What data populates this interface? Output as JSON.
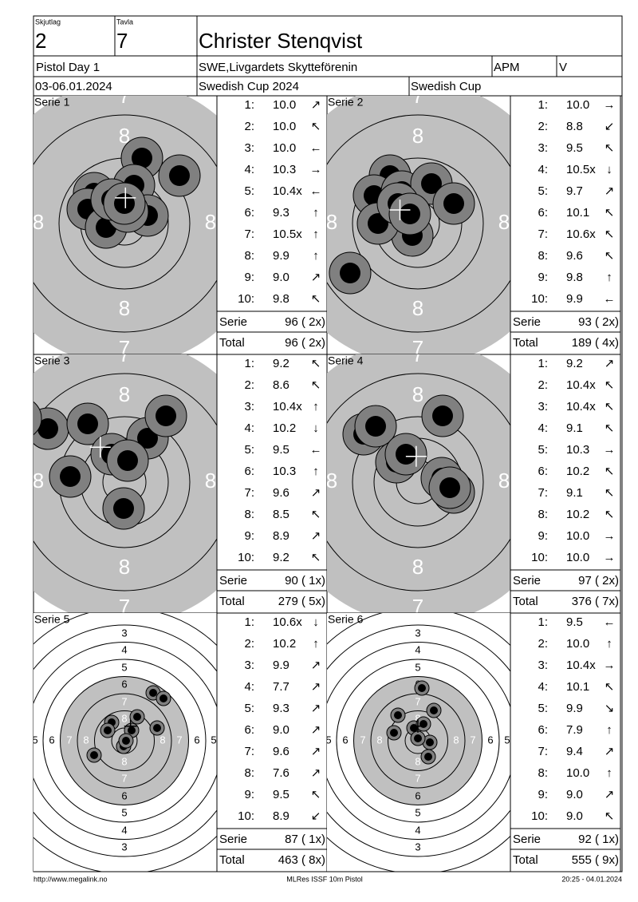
{
  "header": {
    "skjutlag_label": "Skjutlag",
    "skjutlag": "2",
    "tavla_label": "Tavla",
    "tavla": "7",
    "name": "Christer Stenqvist",
    "event": "Pistol Day 1",
    "club": "SWE,Livgardets Skytteförenin",
    "class": "APM",
    "flag": "V",
    "date": "03-06.01.2024",
    "competition": "Swedish Cup 2024",
    "cup": "Swedish Cup"
  },
  "target_labels": {
    "zoomed": {
      "inner": "8",
      "outer": "7"
    },
    "full": [
      "3",
      "4",
      "5",
      "6",
      "7",
      "8"
    ]
  },
  "series": [
    {
      "title": "Serie 1",
      "shots": [
        {
          "n": "1:",
          "score": "10.0",
          "dir": "↗"
        },
        {
          "n": "2:",
          "score": "10.0",
          "dir": "↖"
        },
        {
          "n": "3:",
          "score": "10.0",
          "dir": "←"
        },
        {
          "n": "4:",
          "score": "10.3",
          "dir": "→"
        },
        {
          "n": "5:",
          "score": "10.4x",
          "dir": "←"
        },
        {
          "n": "6:",
          "score": "9.3",
          "dir": "↑"
        },
        {
          "n": "7:",
          "score": "10.5x",
          "dir": "↑"
        },
        {
          "n": "8:",
          "score": "9.9",
          "dir": "↑"
        },
        {
          "n": "9:",
          "score": "9.0",
          "dir": "↗"
        },
        {
          "n": "10:",
          "score": "9.8",
          "dir": "↖"
        }
      ],
      "serie_label": "Serie",
      "serie": "96 ( 2x)",
      "total_label": "Total",
      "total": "96 ( 2x)"
    },
    {
      "title": "Serie 2",
      "shots": [
        {
          "n": "1:",
          "score": "10.0",
          "dir": "→"
        },
        {
          "n": "2:",
          "score": "8.8",
          "dir": "↙"
        },
        {
          "n": "3:",
          "score": "9.5",
          "dir": "↖"
        },
        {
          "n": "4:",
          "score": "10.5x",
          "dir": "↓"
        },
        {
          "n": "5:",
          "score": "9.7",
          "dir": "↗"
        },
        {
          "n": "6:",
          "score": "10.1",
          "dir": "↖"
        },
        {
          "n": "7:",
          "score": "10.6x",
          "dir": "↖"
        },
        {
          "n": "8:",
          "score": "9.6",
          "dir": "↖"
        },
        {
          "n": "9:",
          "score": "9.8",
          "dir": "↑"
        },
        {
          "n": "10:",
          "score": "9.9",
          "dir": "←"
        }
      ],
      "serie_label": "Serie",
      "serie": "93 ( 2x)",
      "total_label": "Total",
      "total": "189 ( 4x)"
    },
    {
      "title": "Serie 3",
      "shots": [
        {
          "n": "1:",
          "score": "9.2",
          "dir": "↖"
        },
        {
          "n": "2:",
          "score": "8.6",
          "dir": "↖"
        },
        {
          "n": "3:",
          "score": "10.4x",
          "dir": "↑"
        },
        {
          "n": "4:",
          "score": "10.2",
          "dir": "↓"
        },
        {
          "n": "5:",
          "score": "9.5",
          "dir": "←"
        },
        {
          "n": "6:",
          "score": "10.3",
          "dir": "↑"
        },
        {
          "n": "7:",
          "score": "9.6",
          "dir": "↗"
        },
        {
          "n": "8:",
          "score": "8.5",
          "dir": "↖"
        },
        {
          "n": "9:",
          "score": "8.9",
          "dir": "↗"
        },
        {
          "n": "10:",
          "score": "9.2",
          "dir": "↖"
        }
      ],
      "serie_label": "Serie",
      "serie": "90 ( 1x)",
      "total_label": "Total",
      "total": "279 ( 5x)"
    },
    {
      "title": "Serie 4",
      "shots": [
        {
          "n": "1:",
          "score": "9.2",
          "dir": "↗"
        },
        {
          "n": "2:",
          "score": "10.4x",
          "dir": "↖"
        },
        {
          "n": "3:",
          "score": "10.4x",
          "dir": "↖"
        },
        {
          "n": "4:",
          "score": "9.1",
          "dir": "↖"
        },
        {
          "n": "5:",
          "score": "10.3",
          "dir": "→"
        },
        {
          "n": "6:",
          "score": "10.2",
          "dir": "↖"
        },
        {
          "n": "7:",
          "score": "9.1",
          "dir": "↖"
        },
        {
          "n": "8:",
          "score": "10.2",
          "dir": "↖"
        },
        {
          "n": "9:",
          "score": "10.0",
          "dir": "→"
        },
        {
          "n": "10:",
          "score": "10.0",
          "dir": "→"
        }
      ],
      "serie_label": "Serie",
      "serie": "97 ( 2x)",
      "total_label": "Total",
      "total": "376 ( 7x)"
    },
    {
      "title": "Serie 5",
      "shots": [
        {
          "n": "1:",
          "score": "10.6x",
          "dir": "↓"
        },
        {
          "n": "2:",
          "score": "10.2",
          "dir": "↑"
        },
        {
          "n": "3:",
          "score": "9.9",
          "dir": "↗"
        },
        {
          "n": "4:",
          "score": "7.7",
          "dir": "↗"
        },
        {
          "n": "5:",
          "score": "9.3",
          "dir": "↗"
        },
        {
          "n": "6:",
          "score": "9.0",
          "dir": "↗"
        },
        {
          "n": "7:",
          "score": "9.6",
          "dir": "↗"
        },
        {
          "n": "8:",
          "score": "7.6",
          "dir": "↗"
        },
        {
          "n": "9:",
          "score": "9.5",
          "dir": "↖"
        },
        {
          "n": "10:",
          "score": "8.9",
          "dir": "↙"
        }
      ],
      "serie_label": "Serie",
      "serie": "87 ( 1x)",
      "total_label": "Total",
      "total": "463 ( 8x)"
    },
    {
      "title": "Serie 6",
      "shots": [
        {
          "n": "1:",
          "score": "9.5",
          "dir": "←"
        },
        {
          "n": "2:",
          "score": "10.0",
          "dir": "↑"
        },
        {
          "n": "3:",
          "score": "10.4x",
          "dir": "→"
        },
        {
          "n": "4:",
          "score": "10.1",
          "dir": "↖"
        },
        {
          "n": "5:",
          "score": "9.9",
          "dir": "↘"
        },
        {
          "n": "6:",
          "score": "7.9",
          "dir": "↑"
        },
        {
          "n": "7:",
          "score": "9.4",
          "dir": "↗"
        },
        {
          "n": "8:",
          "score": "10.0",
          "dir": "↑"
        },
        {
          "n": "9:",
          "score": "9.0",
          "dir": "↗"
        },
        {
          "n": "10:",
          "score": "9.0",
          "dir": "↖"
        }
      ],
      "serie_label": "Serie",
      "serie": "92 ( 1x)",
      "total_label": "Total",
      "total": "555 ( 9x)"
    }
  ],
  "footer": {
    "url": "http://www.megalink.no",
    "program": "MLRes ISSF 10m Pistol",
    "timestamp": "20:25 - 04.01.2024"
  }
}
